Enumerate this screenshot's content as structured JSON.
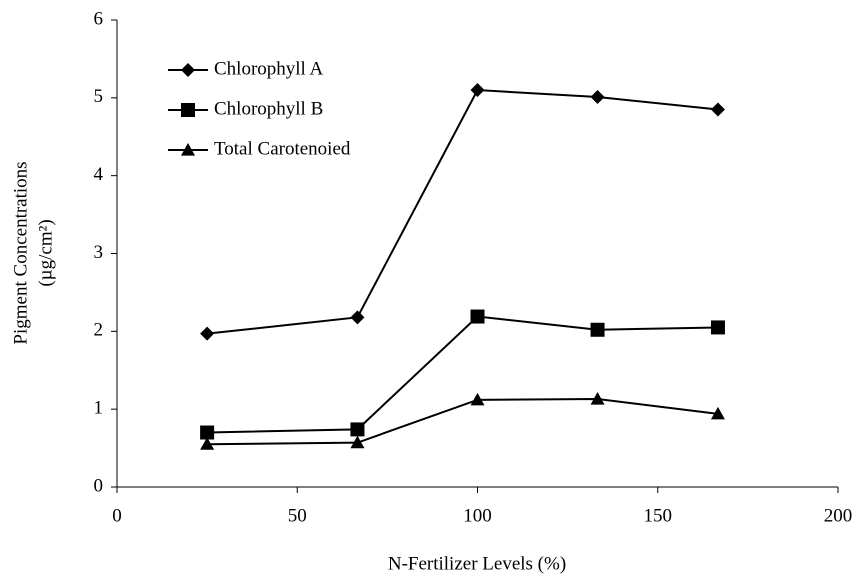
{
  "chart_data": {
    "type": "line",
    "x_label": "N-Fertilizer Levels (%)",
    "y_label": [
      "Pigment Concentrations",
      "(µg/cm²)"
    ],
    "xlim": [
      0,
      200
    ],
    "xticks": [
      0,
      50,
      100,
      150,
      200
    ],
    "ylim": [
      0,
      6
    ],
    "yticks": [
      0,
      1,
      2,
      3,
      4,
      5,
      6
    ],
    "grid": false,
    "legend": "upper-left",
    "series": [
      {
        "name": "Chlorophyll A",
        "color": "#000000",
        "marker": "diamond",
        "x": [
          25,
          66.7,
          100,
          133.3,
          166.7
        ],
        "values": [
          1.97,
          2.18,
          5.1,
          5.01,
          4.85
        ]
      },
      {
        "name": "Chlorophyll B",
        "color": "#000000",
        "marker": "square",
        "x": [
          25,
          66.7,
          100,
          133.3,
          166.7
        ],
        "values": [
          0.7,
          0.74,
          2.19,
          2.02,
          2.05
        ]
      },
      {
        "name": "Total Carotenoied",
        "color": "#000000",
        "marker": "triangle",
        "x": [
          25,
          66.7,
          100,
          133.3,
          166.7
        ],
        "values": [
          0.55,
          0.57,
          1.12,
          1.13,
          0.94
        ]
      }
    ]
  }
}
